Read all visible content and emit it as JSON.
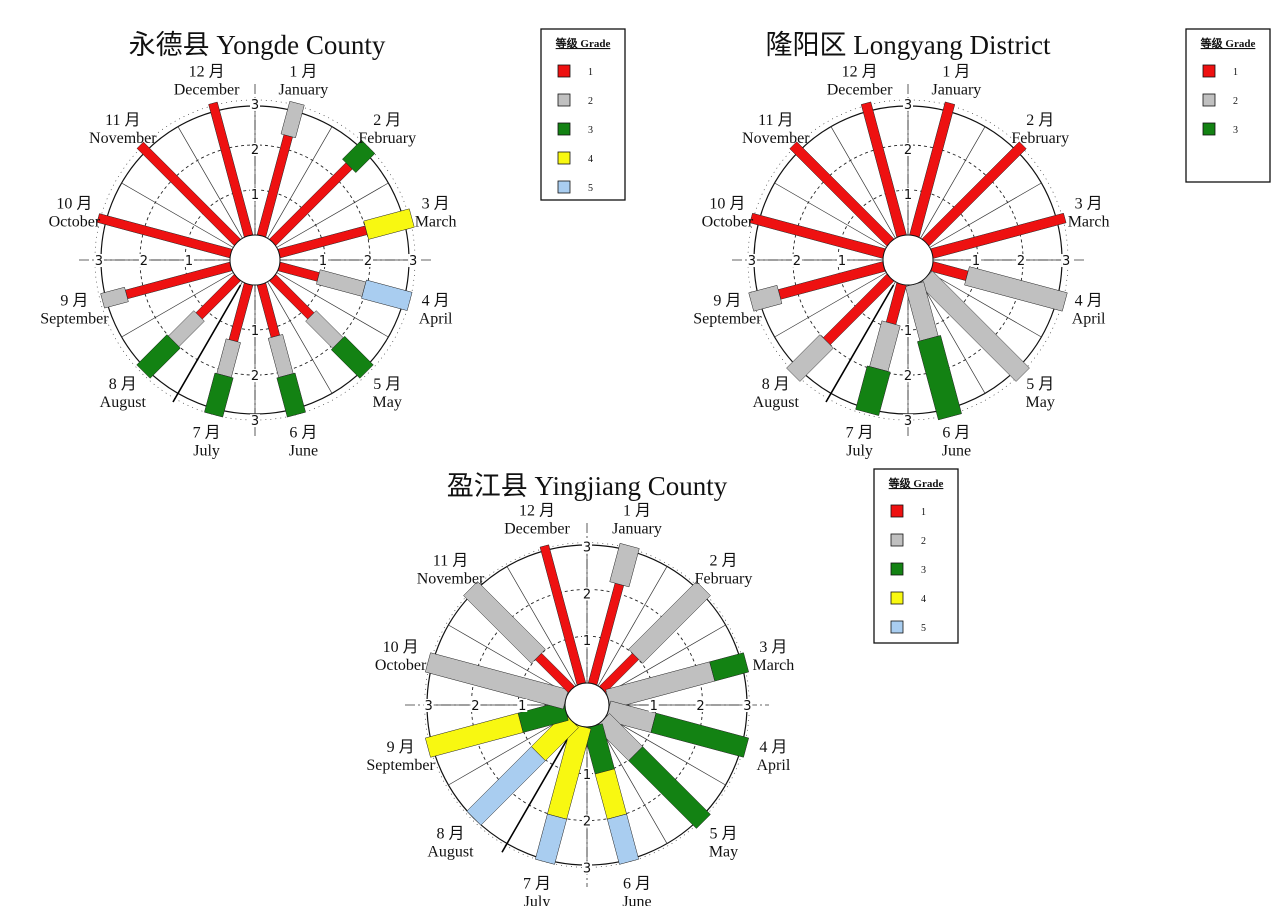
{
  "grade_colors": {
    "1": "#ee1111",
    "2": "#c0c0c0",
    "3": "#138213",
    "4": "#f8f811",
    "5": "#a9cdf0"
  },
  "legend_title": "等级 Grade",
  "month_labels": [
    {
      "cn": "1 月",
      "en": "January"
    },
    {
      "cn": "2 月",
      "en": "February"
    },
    {
      "cn": "3 月",
      "en": "March"
    },
    {
      "cn": "4 月",
      "en": "April"
    },
    {
      "cn": "5 月",
      "en": "May"
    },
    {
      "cn": "6 月",
      "en": "June"
    },
    {
      "cn": "7 月",
      "en": "July"
    },
    {
      "cn": "8 月",
      "en": "August"
    },
    {
      "cn": "9 月",
      "en": "September"
    },
    {
      "cn": "10 月",
      "en": "October"
    },
    {
      "cn": "11 月",
      "en": "November"
    },
    {
      "cn": "12 月",
      "en": "December"
    }
  ],
  "chart_data": [
    {
      "type": "radial-bar",
      "title": "永德县 Yongde County",
      "rlim": [
        0,
        3
      ],
      "ticks": [
        "1",
        "2",
        "3"
      ],
      "legend": [
        "1",
        "2",
        "3",
        "4",
        "5"
      ],
      "months": [
        {
          "month": "January",
          "segments": [
            {
              "grade": 1,
              "from": 0,
              "to": 2.3
            },
            {
              "grade": 2,
              "from": 2.3,
              "to": 3.05
            }
          ]
        },
        {
          "month": "February",
          "segments": [
            {
              "grade": 1,
              "from": 0,
              "to": 2.4
            },
            {
              "grade": 3,
              "from": 2.4,
              "to": 3.0
            }
          ]
        },
        {
          "month": "March",
          "segments": [
            {
              "grade": 1,
              "from": 0,
              "to": 2.0
            },
            {
              "grade": 4,
              "from": 2.0,
              "to": 3.05
            }
          ]
        },
        {
          "month": "April",
          "segments": [
            {
              "grade": 1,
              "from": 0,
              "to": 0.9
            },
            {
              "grade": 2,
              "from": 0.9,
              "to": 1.95
            },
            {
              "grade": 5,
              "from": 1.95,
              "to": 3.0
            }
          ]
        },
        {
          "month": "May",
          "segments": [
            {
              "grade": 1,
              "from": 0,
              "to": 1.2
            },
            {
              "grade": 2,
              "from": 1.2,
              "to": 2.05
            },
            {
              "grade": 3,
              "from": 2.05,
              "to": 2.95
            }
          ]
        },
        {
          "month": "June",
          "segments": [
            {
              "grade": 1,
              "from": 0,
              "to": 1.2
            },
            {
              "grade": 2,
              "from": 1.2,
              "to": 2.1
            },
            {
              "grade": 3,
              "from": 2.1,
              "to": 3.0
            }
          ]
        },
        {
          "month": "July",
          "segments": [
            {
              "grade": 1,
              "from": 0,
              "to": 1.3
            },
            {
              "grade": 2,
              "from": 1.3,
              "to": 2.1
            },
            {
              "grade": 3,
              "from": 2.1,
              "to": 3.0
            }
          ]
        },
        {
          "month": "August",
          "segments": [
            {
              "grade": 1,
              "from": 0,
              "to": 1.2
            },
            {
              "grade": 2,
              "from": 1.2,
              "to": 2.0
            },
            {
              "grade": 3,
              "from": 2.0,
              "to": 2.95
            }
          ]
        },
        {
          "month": "September",
          "segments": [
            {
              "grade": 1,
              "from": 0,
              "to": 2.4
            },
            {
              "grade": 2,
              "from": 2.4,
              "to": 2.95
            }
          ]
        },
        {
          "month": "October",
          "segments": [
            {
              "grade": 1,
              "from": 0,
              "to": 3.05
            }
          ]
        },
        {
          "month": "November",
          "segments": [
            {
              "grade": 1,
              "from": 0,
              "to": 3.05
            }
          ]
        },
        {
          "month": "December",
          "segments": [
            {
              "grade": 1,
              "from": 0,
              "to": 3.05
            }
          ]
        }
      ]
    },
    {
      "type": "radial-bar",
      "title": "隆阳区 Longyang District",
      "rlim": [
        0,
        3
      ],
      "ticks": [
        "1",
        "2",
        "3"
      ],
      "legend": [
        "1",
        "2",
        "3"
      ],
      "months": [
        {
          "month": "January",
          "segments": [
            {
              "grade": 1,
              "from": 0,
              "to": 3.05
            }
          ]
        },
        {
          "month": "February",
          "segments": [
            {
              "grade": 1,
              "from": 0,
              "to": 3.05
            }
          ]
        },
        {
          "month": "March",
          "segments": [
            {
              "grade": 1,
              "from": 0,
              "to": 3.05
            }
          ]
        },
        {
          "month": "April",
          "segments": [
            {
              "grade": 1,
              "from": 0,
              "to": 0.8
            },
            {
              "grade": 2,
              "from": 0.8,
              "to": 3.05
            }
          ]
        },
        {
          "month": "May",
          "segments": [
            {
              "grade": 2,
              "from": 0,
              "to": 3.05
            }
          ]
        },
        {
          "month": "June",
          "segments": [
            {
              "grade": 2,
              "from": 0,
              "to": 1.25
            },
            {
              "grade": 3,
              "from": 1.25,
              "to": 3.05
            }
          ]
        },
        {
          "month": "July",
          "segments": [
            {
              "grade": 1,
              "from": 0,
              "to": 0.9
            },
            {
              "grade": 2,
              "from": 0.9,
              "to": 1.95
            },
            {
              "grade": 3,
              "from": 1.95,
              "to": 2.95
            }
          ]
        },
        {
          "month": "August",
          "segments": [
            {
              "grade": 1,
              "from": 0,
              "to": 2.0
            },
            {
              "grade": 2,
              "from": 2.0,
              "to": 3.05
            }
          ]
        },
        {
          "month": "September",
          "segments": [
            {
              "grade": 1,
              "from": 0,
              "to": 2.4
            },
            {
              "grade": 2,
              "from": 2.4,
              "to": 3.05
            }
          ]
        },
        {
          "month": "October",
          "segments": [
            {
              "grade": 1,
              "from": 0,
              "to": 3.05
            }
          ]
        },
        {
          "month": "November",
          "segments": [
            {
              "grade": 1,
              "from": 0,
              "to": 3.05
            }
          ]
        },
        {
          "month": "December",
          "segments": [
            {
              "grade": 1,
              "from": 0,
              "to": 3.05
            }
          ]
        }
      ]
    },
    {
      "type": "radial-bar",
      "title": "盈江县 Yingjiang County",
      "rlim": [
        0,
        3
      ],
      "ticks": [
        "1",
        "2",
        "3"
      ],
      "legend": [
        "1",
        "2",
        "3",
        "4",
        "5"
      ],
      "months": [
        {
          "month": "January",
          "segments": [
            {
              "grade": 1,
              "from": 0,
              "to": 2.2
            },
            {
              "grade": 2,
              "from": 2.2,
              "to": 3.05
            }
          ]
        },
        {
          "month": "February",
          "segments": [
            {
              "grade": 1,
              "from": 0,
              "to": 1.0
            },
            {
              "grade": 2,
              "from": 1.0,
              "to": 3.05
            }
          ]
        },
        {
          "month": "March",
          "segments": [
            {
              "grade": 2,
              "from": 0,
              "to": 2.3
            },
            {
              "grade": 3,
              "from": 2.3,
              "to": 3.05
            }
          ]
        },
        {
          "month": "April",
          "segments": [
            {
              "grade": 2,
              "from": 0,
              "to": 1.0
            },
            {
              "grade": 3,
              "from": 1.0,
              "to": 3.05
            }
          ]
        },
        {
          "month": "May",
          "segments": [
            {
              "grade": 2,
              "from": 0,
              "to": 1.0
            },
            {
              "grade": 3,
              "from": 1.0,
              "to": 3.05
            }
          ]
        },
        {
          "month": "June",
          "segments": [
            {
              "grade": 3,
              "from": 0,
              "to": 1.0
            },
            {
              "grade": 4,
              "from": 1.0,
              "to": 2.0
            },
            {
              "grade": 5,
              "from": 2.0,
              "to": 3.0
            }
          ]
        },
        {
          "month": "July",
          "segments": [
            {
              "grade": 4,
              "from": 0,
              "to": 2.0
            },
            {
              "grade": 5,
              "from": 2.0,
              "to": 3.0
            }
          ]
        },
        {
          "month": "August",
          "segments": [
            {
              "grade": 4,
              "from": 0,
              "to": 1.0
            },
            {
              "grade": 5,
              "from": 1.0,
              "to": 2.95
            }
          ]
        },
        {
          "month": "September",
          "segments": [
            {
              "grade": 3,
              "from": 0,
              "to": 1.0
            },
            {
              "grade": 4,
              "from": 1.0,
              "to": 3.05
            }
          ]
        },
        {
          "month": "October",
          "segments": [
            {
              "grade": 2,
              "from": 0,
              "to": 3.05
            }
          ]
        },
        {
          "month": "November",
          "segments": [
            {
              "grade": 1,
              "from": 0,
              "to": 1.0
            },
            {
              "grade": 2,
              "from": 1.0,
              "to": 3.05
            }
          ]
        },
        {
          "month": "December",
          "segments": [
            {
              "grade": 1,
              "from": 0,
              "to": 3.05
            }
          ]
        }
      ]
    }
  ]
}
